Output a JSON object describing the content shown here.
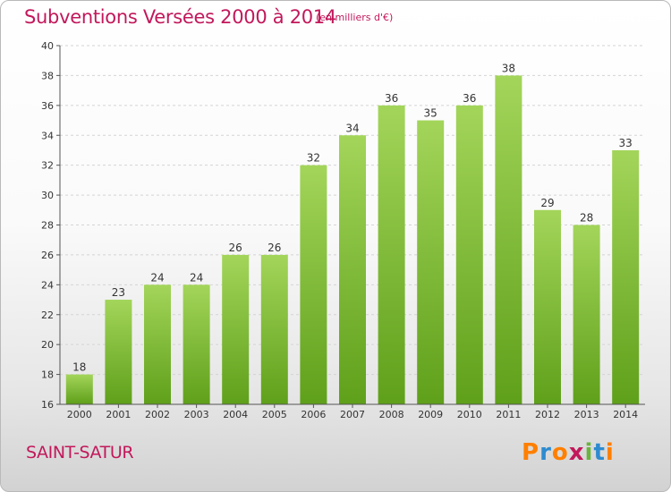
{
  "header": {
    "title": "Subventions Versées 2000 à 2014",
    "subtitle": "(en milliers d'€)"
  },
  "footer": {
    "place": "SAINT-SATUR",
    "logo_text": "Proxiti",
    "logo_colors": [
      "#ff7f00",
      "#2e8bd0",
      "#ff7f00",
      "#c2185b",
      "#6cb33f",
      "#2e8bd0",
      "#ff7f00"
    ]
  },
  "chart_data": {
    "type": "bar",
    "categories": [
      "2000",
      "2001",
      "2002",
      "2003",
      "2004",
      "2005",
      "2006",
      "2007",
      "2008",
      "2009",
      "2010",
      "2011",
      "2012",
      "2013",
      "2014"
    ],
    "values": [
      18,
      23,
      24,
      24,
      26,
      26,
      32,
      34,
      36,
      35,
      36,
      38,
      29,
      28,
      33
    ],
    "ylim": [
      16,
      40
    ],
    "yticks": [
      16,
      18,
      20,
      22,
      24,
      26,
      28,
      30,
      32,
      34,
      36,
      38,
      40
    ],
    "grid": true,
    "bar_color_top": "#a3d55a",
    "bar_color_bottom": "#5fa01a"
  }
}
